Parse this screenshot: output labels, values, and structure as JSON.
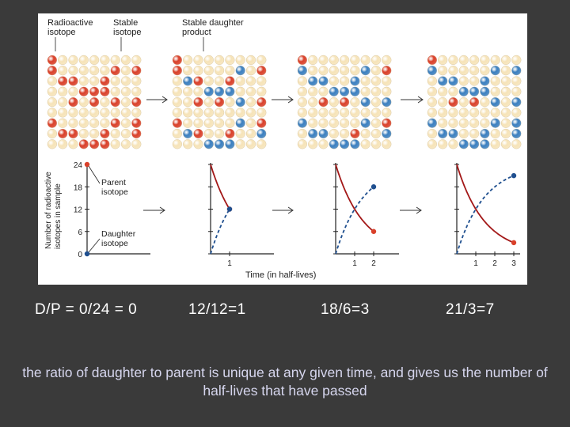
{
  "labels": {
    "radioactive_isotope": [
      "Radioactive",
      "isotope"
    ],
    "stable_isotope": [
      "Stable",
      "isotope"
    ],
    "stable_daughter_product": [
      "Stable daughter",
      "product"
    ]
  },
  "colors": {
    "radioactive": "#d9402a",
    "stable_isotope": "#f6e3b8",
    "daughter": "#3b7fbf",
    "decay_curve": "#a31818",
    "growth_curve": "#1f4f8f",
    "slide_background": "#3a3a3a",
    "caption_text": "#d6d6ee"
  },
  "grids": [
    {
      "parent": 24,
      "daughter": 0
    },
    {
      "parent": 12,
      "daughter": 12
    },
    {
      "parent": 6,
      "daughter": 18
    },
    {
      "parent": 3,
      "daughter": 21
    }
  ],
  "chart_data": {
    "type": "line",
    "xlabel": "Time (in half-lives)",
    "ylabel": [
      "Number of radioactive",
      "isotopes in sample"
    ],
    "yticks": [
      0,
      6,
      12,
      18,
      24
    ],
    "ylim": [
      0,
      24
    ],
    "annotations": {
      "parent": [
        "Parent",
        "isotope"
      ],
      "daughter": [
        "Daughter",
        "isotope"
      ]
    },
    "panels": [
      {
        "xticks": [],
        "parent": [
          [
            0,
            24
          ]
        ],
        "daughter": [
          [
            0,
            0
          ]
        ]
      },
      {
        "xticks": [
          1
        ],
        "parent": [
          [
            0,
            24
          ],
          [
            1,
            12
          ]
        ],
        "daughter": [
          [
            0,
            0
          ],
          [
            1,
            12
          ]
        ]
      },
      {
        "xticks": [
          1,
          2
        ],
        "parent": [
          [
            0,
            24
          ],
          [
            1,
            12
          ],
          [
            2,
            6
          ]
        ],
        "daughter": [
          [
            0,
            0
          ],
          [
            1,
            12
          ],
          [
            2,
            18
          ]
        ]
      },
      {
        "xticks": [
          1,
          2,
          3
        ],
        "parent": [
          [
            0,
            24
          ],
          [
            1,
            12
          ],
          [
            2,
            6
          ],
          [
            3,
            3
          ]
        ],
        "daughter": [
          [
            0,
            0
          ],
          [
            1,
            12
          ],
          [
            2,
            18
          ],
          [
            3,
            21
          ]
        ]
      }
    ]
  },
  "ratios": [
    "D/P = 0/24 = 0",
    "12/12=1",
    "18/6=3",
    "21/3=7"
  ],
  "caption": "the ratio of daughter to parent is unique at any given time, and gives us the number of half-lives that have passed"
}
